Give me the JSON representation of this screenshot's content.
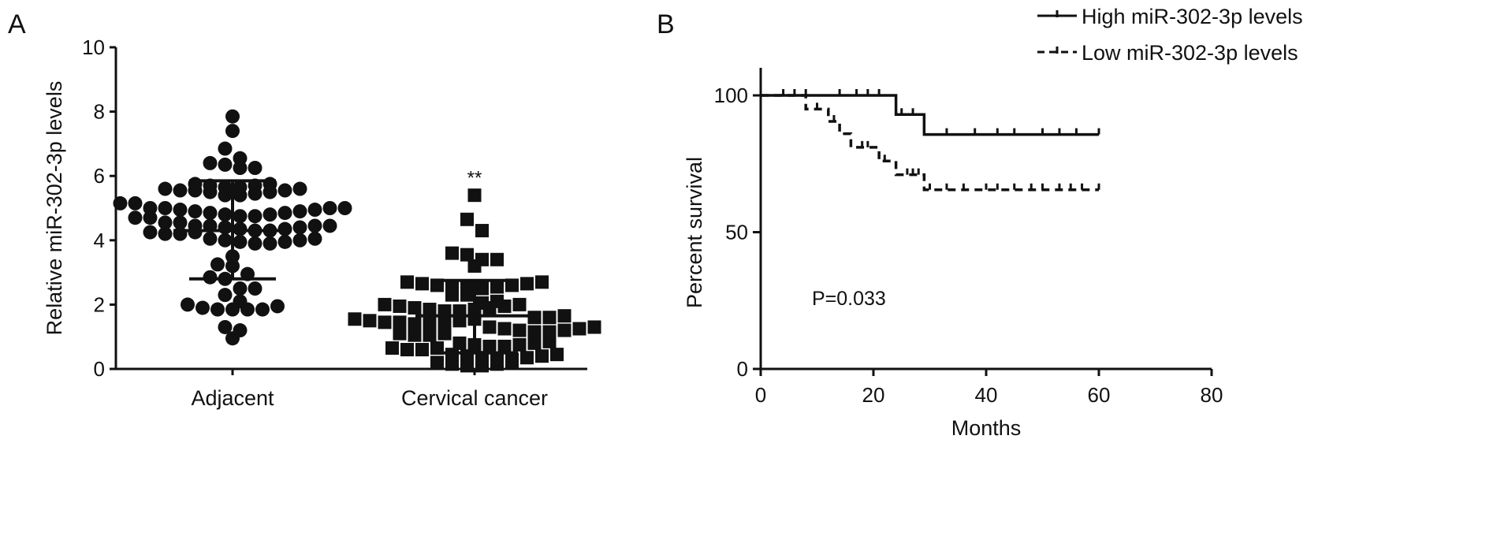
{
  "chart_data": [
    {
      "panel_label": "A",
      "type": "scatter",
      "ylabel": "Relative miR-302-3p levels",
      "ylim": [
        0,
        10
      ],
      "yticks": [
        "0",
        "2",
        "4",
        "6",
        "8",
        "10"
      ],
      "categories": [
        "Adjacent",
        "Cervical cancer"
      ],
      "annotation": "**",
      "series": [
        {
          "name": "Adjacent",
          "marker": "circle",
          "mean": 4.3,
          "sd_low": 2.8,
          "sd_high": 5.85,
          "values": [
            7.85,
            7.4,
            6.85,
            6.55,
            6.4,
            6.35,
            6.25,
            6.25,
            5.75,
            5.7,
            5.65,
            5.6,
            5.55,
            5.55,
            5.5,
            5.4,
            5.4,
            5.45,
            5.5,
            5.55,
            5.6,
            5.65,
            5.7,
            5.75,
            5.15,
            5.15,
            5.0,
            5.0,
            4.95,
            4.9,
            4.85,
            4.8,
            4.75,
            4.7,
            4.7,
            4.75,
            4.8,
            4.85,
            4.9,
            4.95,
            5.0,
            5.0,
            4.55,
            4.55,
            4.45,
            4.45,
            4.4,
            4.35,
            4.3,
            4.25,
            4.2,
            4.2,
            4.25,
            4.3,
            4.35,
            4.4,
            4.45,
            4.45,
            4.05,
            4.0,
            3.95,
            3.9,
            3.9,
            3.95,
            4.0,
            4.05,
            3.5,
            3.25,
            3.2,
            2.95,
            2.85,
            2.8,
            2.5,
            2.5,
            2.3,
            2.1,
            2.0,
            1.9,
            1.85,
            1.85,
            1.85,
            1.85,
            1.95,
            1.3,
            1.2,
            0.95
          ]
        },
        {
          "name": "Cervical cancer",
          "marker": "square",
          "mean": 1.65,
          "sd_low": 0.5,
          "sd_high": 2.75,
          "values": [
            5.4,
            4.65,
            4.3,
            3.6,
            3.55,
            3.4,
            3.4,
            3.2,
            2.7,
            2.65,
            2.6,
            2.55,
            2.5,
            2.5,
            2.55,
            2.6,
            2.65,
            2.7,
            2.3,
            2.3,
            2.0,
            1.95,
            1.9,
            1.85,
            1.8,
            1.8,
            1.85,
            1.9,
            1.95,
            2.0,
            2.05,
            2.1,
            1.6,
            1.55,
            1.5,
            1.45,
            1.45,
            1.4,
            1.4,
            1.45,
            1.5,
            1.55,
            1.6,
            1.65,
            1.3,
            1.25,
            1.2,
            1.15,
            1.1,
            1.05,
            1.05,
            1.1,
            1.15,
            1.2,
            1.25,
            1.3,
            0.8,
            0.75,
            0.7,
            0.65,
            0.6,
            0.6,
            0.65,
            0.7,
            0.75,
            0.8,
            0.85,
            0.45,
            0.4,
            0.35,
            0.3,
            0.3,
            0.35,
            0.4,
            0.45,
            0.2,
            0.15,
            0.1,
            0.1,
            0.15,
            0.2
          ]
        }
      ]
    },
    {
      "panel_label": "B",
      "type": "line",
      "subtype": "kaplan-meier",
      "xlabel": "Months",
      "ylabel": "Percent survival",
      "xlim": [
        0,
        80
      ],
      "ylim": [
        0,
        100
      ],
      "xticks": [
        "0",
        "20",
        "40",
        "60",
        "80"
      ],
      "yticks": [
        "0",
        "50",
        "100"
      ],
      "annotation": "P=0.033",
      "legend_position": "top-right",
      "series": [
        {
          "name": "High miR-302-3p levels",
          "style": "solid",
          "steps": [
            [
              0,
              100
            ],
            [
              24,
              93
            ],
            [
              29,
              85.7
            ],
            [
              60,
              85.7
            ]
          ],
          "censored": [
            8,
            14,
            17,
            19,
            21,
            25,
            27,
            33,
            38,
            42,
            45,
            50,
            53,
            56,
            60
          ]
        },
        {
          "name": "Low miR-302-3p levels",
          "style": "dashed",
          "steps": [
            [
              0,
              100
            ],
            [
              8,
              95
            ],
            [
              12,
              90.5
            ],
            [
              14,
              86
            ],
            [
              16,
              81
            ],
            [
              21,
              76
            ],
            [
              24,
              71
            ],
            [
              29,
              65.5
            ],
            [
              60,
              65.5
            ]
          ],
          "censored": [
            4,
            6,
            10,
            13,
            18,
            19,
            22,
            26,
            27,
            28,
            30,
            33,
            36,
            40,
            42,
            45,
            48,
            50,
            53,
            55,
            57,
            60
          ]
        }
      ]
    }
  ]
}
